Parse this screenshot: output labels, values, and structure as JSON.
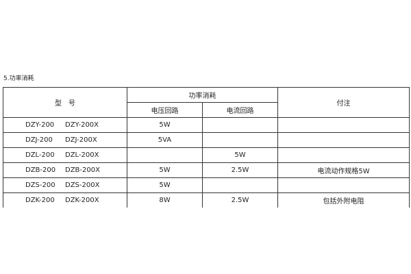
{
  "section_title": "5.功率消耗",
  "table": {
    "headers": {
      "model": "型　号",
      "power": "功率消耗",
      "voltage": "电压回路",
      "current": "电流回路",
      "note": "付注"
    },
    "rows": [
      {
        "model_a": "DZY-200",
        "model_b": "DZY-200X",
        "voltage": "5W",
        "current": "",
        "note": ""
      },
      {
        "model_a": "DZJ-200",
        "model_b": "DZJ-200X",
        "voltage": "5VA",
        "current": "",
        "note": ""
      },
      {
        "model_a": "DZL-200",
        "model_b": "DZL-200X",
        "voltage": "",
        "current": "5W",
        "note": ""
      },
      {
        "model_a": "DZB-200",
        "model_b": "DZB-200X",
        "voltage": "5W",
        "current": "2.5W",
        "note": "电流动作规格5W"
      },
      {
        "model_a": "DZS-200",
        "model_b": "DZS-200X",
        "voltage": "5W",
        "current": "",
        "note": ""
      },
      {
        "model_a": "DZK-200",
        "model_b": "DZK-200X",
        "voltage": "8W",
        "current": "2.5W",
        "note": "包括外附电阻"
      }
    ]
  }
}
